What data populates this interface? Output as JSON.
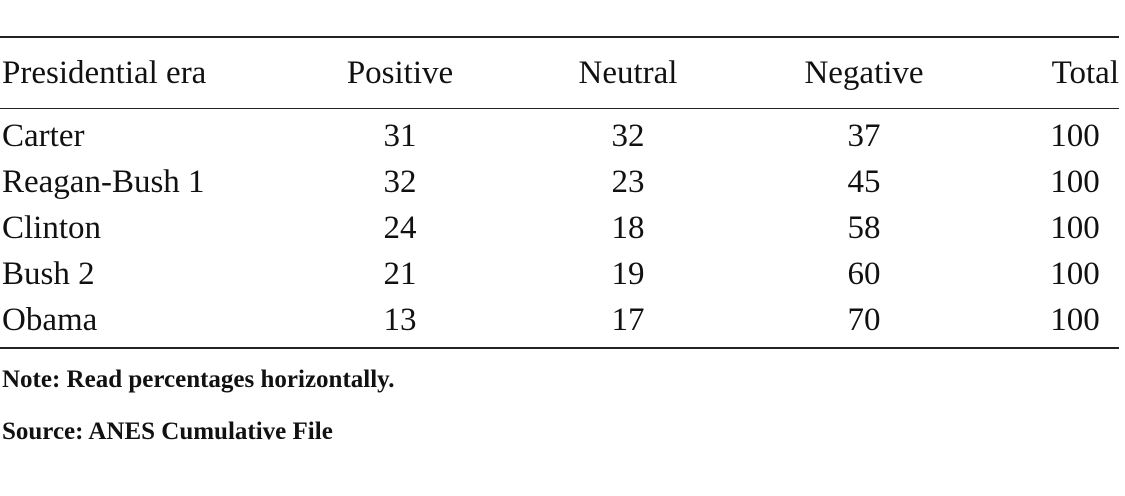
{
  "table": {
    "headers": {
      "era": "Presidential era",
      "positive": "Positive",
      "neutral": "Neutral",
      "negative": "Negative",
      "total": "Total"
    },
    "rows": [
      {
        "era": "Carter",
        "positive": "31",
        "neutral": "32",
        "negative": "37",
        "total": "100"
      },
      {
        "era": "Reagan-Bush 1",
        "positive": "32",
        "neutral": "23",
        "negative": "45",
        "total": "100"
      },
      {
        "era": "Clinton",
        "positive": "24",
        "neutral": "18",
        "negative": "58",
        "total": "100"
      },
      {
        "era": "Bush 2",
        "positive": "21",
        "neutral": "19",
        "negative": "60",
        "total": "100"
      },
      {
        "era": "Obama",
        "positive": "13",
        "neutral": "17",
        "negative": "70",
        "total": "100"
      }
    ]
  },
  "notes": {
    "note": "Note: Read percentages horizontally.",
    "source": "Source: ANES Cumulative File"
  },
  "colors": {
    "text": "#111111",
    "rule": "#222222",
    "background": "#ffffff"
  }
}
